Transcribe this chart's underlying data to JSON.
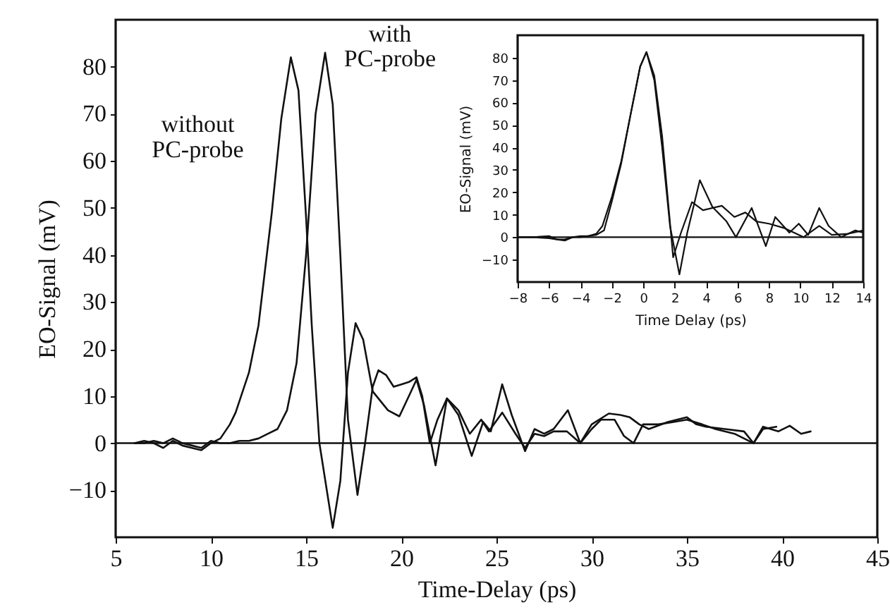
{
  "chart_data": [
    {
      "type": "line",
      "xlabel": "Time-Delay (ps)",
      "ylabel": "EO-Signal (mV)",
      "xlim": [
        5,
        45
      ],
      "xticks": [
        5,
        10,
        15,
        20,
        25,
        30,
        35,
        40,
        45
      ],
      "ylim": [
        -20,
        90
      ],
      "yticks": [
        -10,
        0,
        10,
        20,
        30,
        40,
        50,
        60,
        70,
        80
      ],
      "grid": false,
      "legend": false,
      "ref_lines": [
        {
          "axis": "y",
          "value": 0
        }
      ],
      "series": [
        {
          "name": "without PC-probe",
          "color": "#111111",
          "x": [
            6,
            6.5,
            7,
            7.5,
            8,
            8.5,
            9,
            9.5,
            10,
            10.5,
            11,
            11.3,
            12,
            12.5,
            13.2,
            13.7,
            14.2,
            14.6,
            15,
            15.3,
            15.7,
            16.4,
            16.8,
            17.2,
            17.6,
            18,
            18.5,
            19.3,
            19.9,
            20.4,
            20.8,
            21.2,
            21.8,
            22.4,
            23,
            23.7,
            24.3,
            24.7,
            25.3,
            25.8,
            26.5,
            27,
            27.5,
            28,
            28.75,
            29.4,
            30,
            30.9,
            31.5,
            32,
            32.5,
            33,
            34,
            35,
            35.5,
            36,
            37,
            38,
            38.5,
            39,
            39.7
          ],
          "values": [
            0,
            0.5,
            0,
            -1,
            0.5,
            -0.5,
            -1,
            -1.5,
            0,
            1,
            4,
            6.5,
            15,
            25,
            49,
            69,
            82,
            75,
            48,
            25,
            0,
            -18,
            -8,
            15,
            25.5,
            22,
            11,
            7,
            5.7,
            10,
            13.5,
            8,
            -4.7,
            9.5,
            6,
            -2.7,
            4.5,
            2.5,
            12.5,
            6,
            -1.7,
            3,
            2,
            3,
            7,
            0,
            4,
            6.3,
            6,
            5.5,
            4,
            3,
            4.5,
            5.5,
            4,
            3.5,
            3,
            2.5,
            0,
            3,
            3.5
          ]
        },
        {
          "name": "with PC-probe",
          "color": "#111111",
          "x": [
            6,
            6.5,
            7,
            7.5,
            8,
            8.5,
            9,
            9.5,
            10,
            10.5,
            11,
            11.5,
            12,
            12.5,
            13,
            13.5,
            14,
            14.5,
            15,
            15.5,
            16,
            16.4,
            16.8,
            17.2,
            17.7,
            18.1,
            18.5,
            18.8,
            19.2,
            19.6,
            20,
            20.4,
            20.8,
            21.1,
            21.5,
            21.9,
            22.4,
            23,
            23.6,
            24.2,
            24.6,
            25.3,
            26,
            26.5,
            27,
            27.5,
            28,
            28.7,
            29.4,
            30,
            30.5,
            31.2,
            31.7,
            32.2,
            32.7,
            33.5,
            34.3,
            35,
            35.8,
            36.5,
            37.5,
            38.5,
            39,
            39.8,
            40.4,
            41,
            41.5
          ],
          "values": [
            0,
            0,
            0.5,
            0,
            1,
            0,
            -0.5,
            -1,
            0.5,
            0,
            0,
            0.5,
            0.5,
            1,
            2,
            3,
            7,
            17,
            40,
            70,
            83,
            72,
            40,
            5,
            -11,
            0,
            12,
            15.5,
            14.5,
            12,
            12.5,
            13,
            14,
            10,
            0,
            5,
            9.5,
            7,
            2,
            5,
            2.5,
            6.5,
            2,
            -1,
            2,
            1.5,
            2.5,
            2.5,
            0,
            3,
            5,
            5,
            1.5,
            0,
            4,
            4,
            4.5,
            5,
            4,
            3,
            2,
            0,
            3.5,
            2.5,
            3.7,
            2,
            2.5
          ]
        }
      ]
    },
    {
      "type": "line",
      "xlabel": "Time Delay (ps)",
      "ylabel": "EO-Signal (mV)",
      "xlim": [
        -8,
        14
      ],
      "xticks": [
        -8,
        -6,
        -4,
        -2,
        0,
        2,
        4,
        6,
        8,
        10,
        12,
        14
      ],
      "ylim": [
        -20,
        90
      ],
      "yticks": [
        -10,
        0,
        10,
        20,
        30,
        40,
        50,
        60,
        70,
        80
      ],
      "grid": false,
      "legend": false,
      "ref_lines": [
        {
          "axis": "y",
          "value": 0
        }
      ],
      "series": [
        {
          "color": "#111111",
          "x": [
            -8,
            -7,
            -6,
            -5.5,
            -5,
            -4.5,
            -4,
            -3.5,
            -3,
            -2.6,
            -2,
            -1.4,
            -0.8,
            -0.2,
            0.2,
            0.7,
            1.2,
            1.7,
            2.3,
            2.8,
            3.6,
            4.4,
            5.3,
            5.9,
            6.9,
            7.8,
            8.4,
            9.3,
            9.9,
            10.5,
            11.2,
            11.8,
            12.6,
            13.5,
            14
          ],
          "values": [
            0,
            0,
            0.5,
            -1,
            -1,
            0,
            0.5,
            0.5,
            1.5,
            5,
            18,
            34,
            55,
            76,
            82.5,
            70,
            40,
            5,
            -16.6,
            2,
            25.4,
            13.5,
            7,
            0,
            13,
            -4,
            9,
            2,
            6,
            1,
            13,
            5,
            0,
            3,
            2
          ]
        },
        {
          "color": "#111111",
          "x": [
            -8,
            -7,
            -6,
            -5.5,
            -5,
            -4.5,
            -4,
            -3.5,
            -3,
            -2.5,
            -2,
            -1.4,
            -0.8,
            -0.2,
            0.2,
            0.7,
            1.2,
            1.9,
            2.4,
            3.1,
            3.8,
            5,
            5.8,
            6.5,
            7.2,
            8,
            9,
            10.2,
            11.2,
            12,
            13,
            14
          ],
          "values": [
            0,
            0,
            -0.5,
            -1,
            -1.5,
            0,
            0,
            0.5,
            1,
            3,
            16,
            33,
            55,
            76,
            82.5,
            72,
            45,
            -9,
            2,
            15.6,
            12,
            14,
            9,
            11,
            7,
            6,
            4,
            0,
            5,
            1,
            1.5,
            3
          ]
        }
      ]
    }
  ]
}
